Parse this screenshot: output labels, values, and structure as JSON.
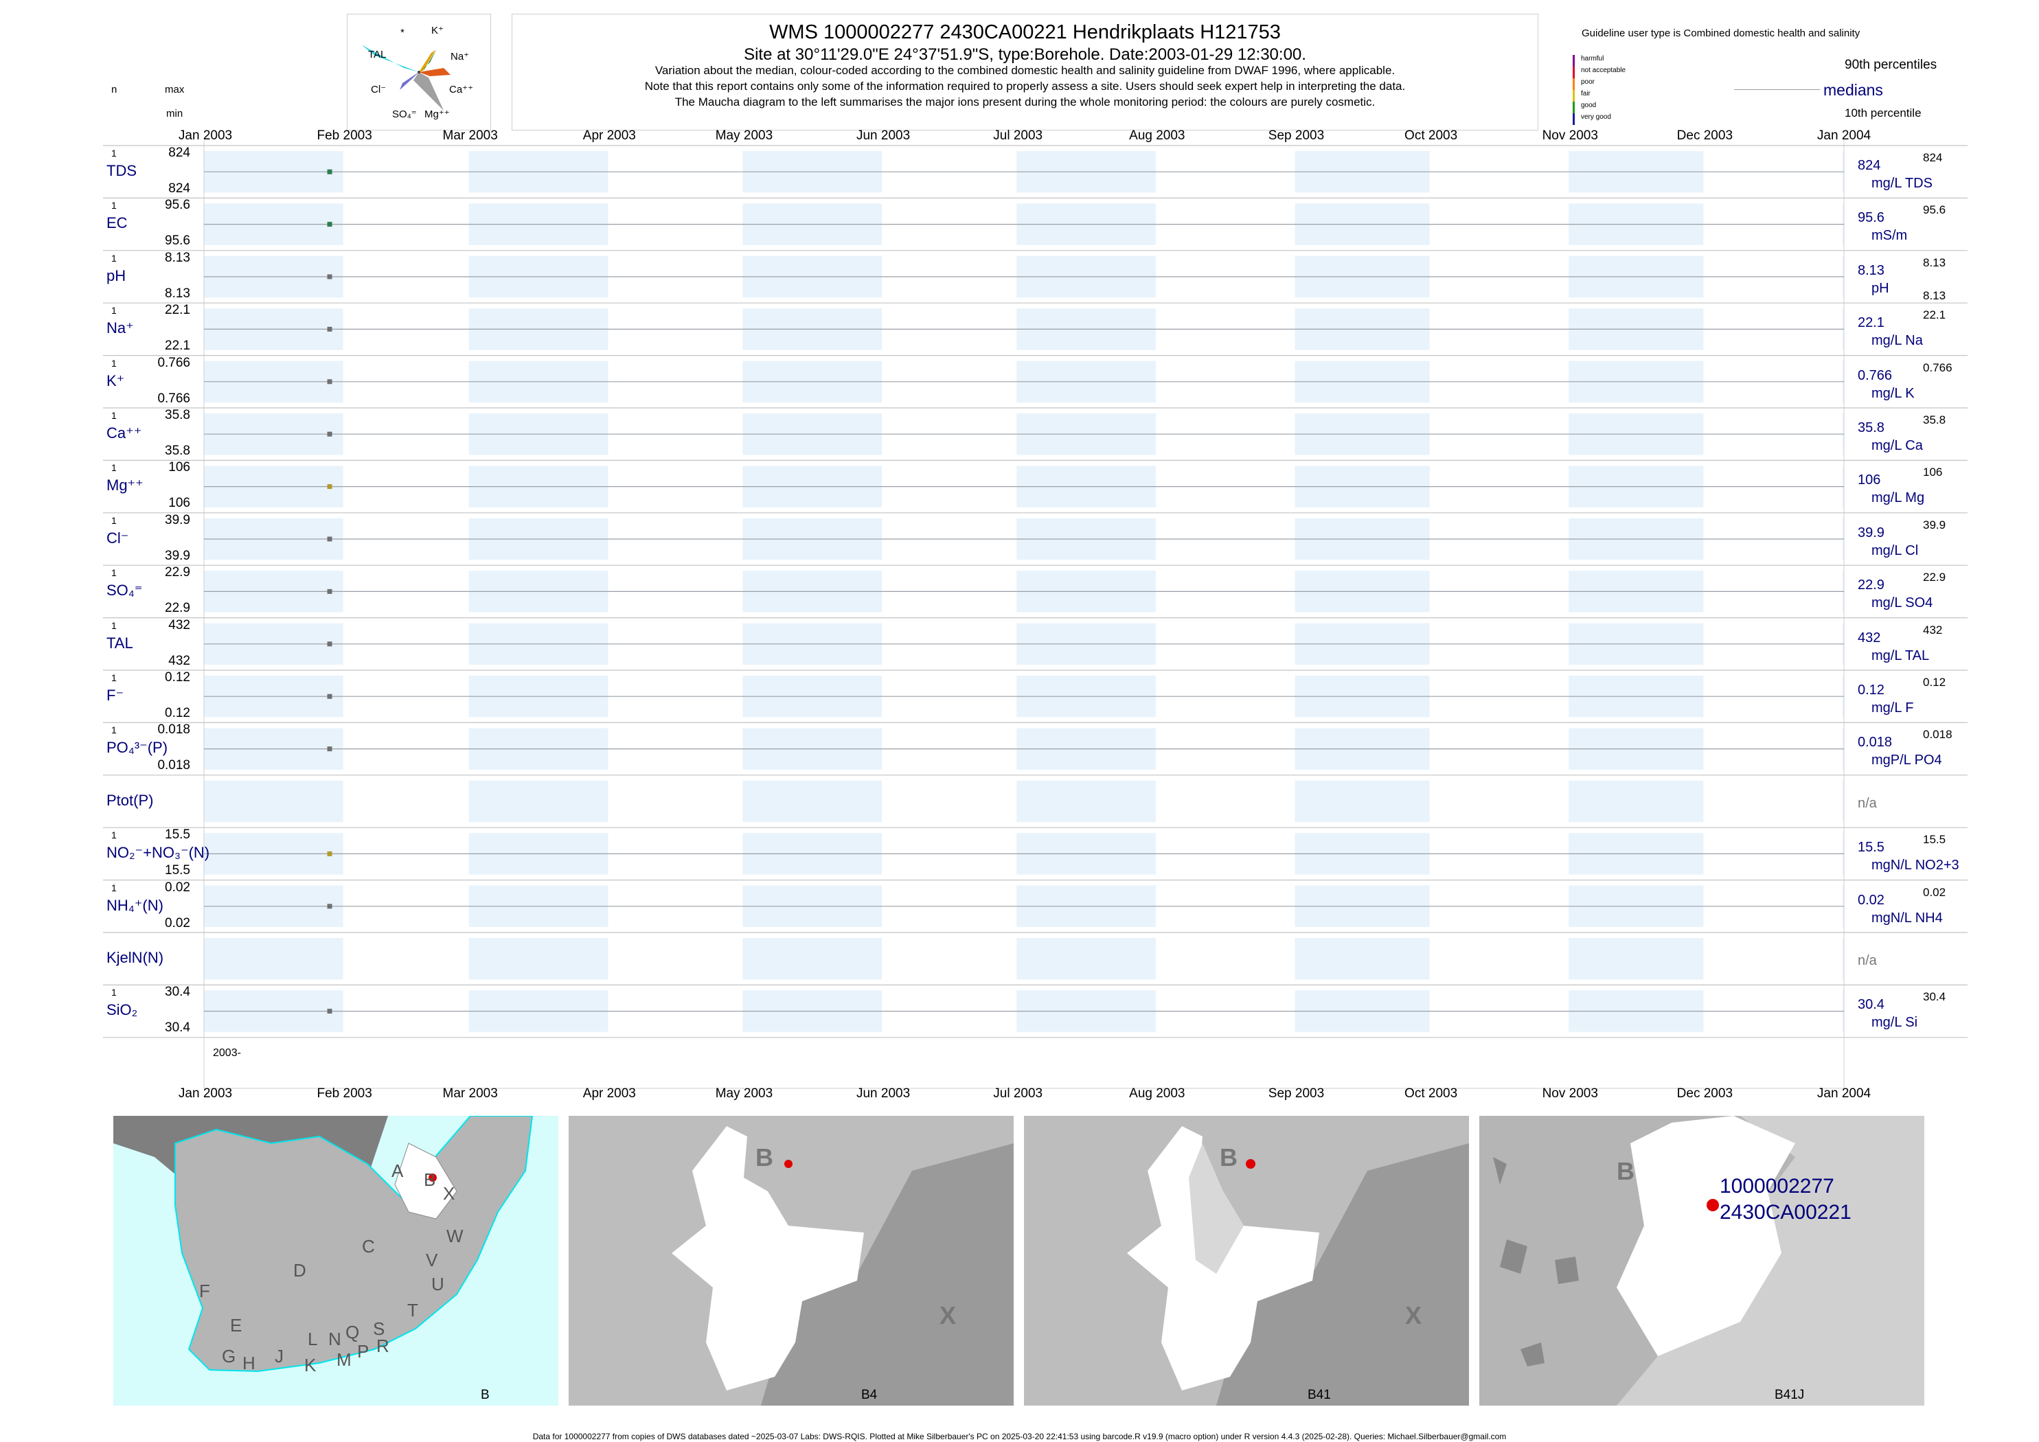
{
  "header": {
    "title": "WMS 1000002277 2430CA00221 Hendrikplaats H121753",
    "subtitle": "Site at 30°11'29.0\"E 24°37'51.9\"S, type:Borehole. Date:2003-01-29 12:30:00.",
    "note1": "Variation about the median,  colour-coded according to the combined domestic health and salinity guideline from DWAF 1996, where applicable.",
    "note2": "Note that this report contains only some of the information required to properly assess a site. Users should seek expert help in interpreting the data.",
    "note3": "The Maucha diagram to the left summarises the major ions present during the whole monitoring period: the colours are purely cosmetic."
  },
  "maucha": {
    "labels": [
      "*",
      "K⁺",
      "TAL",
      "Na⁺",
      "Cl⁻",
      "Ca⁺⁺",
      "SO₄⁼",
      "Mg⁺⁺"
    ]
  },
  "guideline": {
    "title": "Guideline user type is Combined domestic health and salinity",
    "classes": [
      {
        "label": "harmful",
        "color": "#8b008b"
      },
      {
        "label": "not acceptable",
        "color": "#e0002a"
      },
      {
        "label": "poor",
        "color": "#ff7f00"
      },
      {
        "label": "fair",
        "color": "#e0c000"
      },
      {
        "label": "good",
        "color": "#1a9a1a"
      },
      {
        "label": "very good",
        "color": "#1a1aa0"
      }
    ],
    "p90_label": "90th percentiles",
    "median_label": "medians",
    "p10_label": "10th percentile"
  },
  "left_header": {
    "n": "n",
    "max": "max",
    "min": "min"
  },
  "months": [
    "Jan 2003",
    "Feb 2003",
    "Mar 2003",
    "Apr 2003",
    "May 2003",
    "Jun 2003",
    "Jul 2003",
    "Aug 2003",
    "Sep 2003",
    "Oct 2003",
    "Nov 2003",
    "Dec 2003",
    "Jan 2004"
  ],
  "year_label": "2003-",
  "chart_data": {
    "type": "scatter",
    "x_range": [
      "2003-01-01",
      "2004-01-01"
    ],
    "sample_date": "2003-01-29",
    "series": [
      {
        "label": "TDS",
        "n": "1",
        "max": "824",
        "min": "824",
        "median": "824",
        "p90": "824",
        "unit": "mg/L TDS",
        "color": "#2e7d4f"
      },
      {
        "label": "EC",
        "n": "1",
        "max": "95.6",
        "min": "95.6",
        "median": "95.6",
        "p90": "95.6",
        "unit": "mS/m",
        "color": "#2e7d4f"
      },
      {
        "label": "pH",
        "n": "1",
        "max": "8.13",
        "min": "8.13",
        "median": "8.13",
        "p90": "8.13",
        "p10": "8.13",
        "unit": "pH",
        "color": "#707070"
      },
      {
        "label": "Na⁺",
        "n": "1",
        "max": "22.1",
        "min": "22.1",
        "median": "22.1",
        "p90": "22.1",
        "unit": "mg/L Na",
        "color": "#707070"
      },
      {
        "label": "K⁺",
        "n": "1",
        "max": "0.766",
        "min": "0.766",
        "median": "0.766",
        "p90": "0.766",
        "unit": "mg/L K",
        "color": "#707070"
      },
      {
        "label": "Ca⁺⁺",
        "n": "1",
        "max": "35.8",
        "min": "35.8",
        "median": "35.8",
        "p90": "35.8",
        "unit": "mg/L Ca",
        "color": "#707070"
      },
      {
        "label": "Mg⁺⁺",
        "n": "1",
        "max": "106",
        "min": "106",
        "median": "106",
        "p90": "106",
        "unit": "mg/L Mg",
        "color": "#b49a2a"
      },
      {
        "label": "Cl⁻",
        "n": "1",
        "max": "39.9",
        "min": "39.9",
        "median": "39.9",
        "p90": "39.9",
        "unit": "mg/L Cl",
        "color": "#707070"
      },
      {
        "label": "SO₄⁼",
        "n": "1",
        "max": "22.9",
        "min": "22.9",
        "median": "22.9",
        "p90": "22.9",
        "unit": "mg/L SO4",
        "color": "#707070"
      },
      {
        "label": "TAL",
        "n": "1",
        "max": "432",
        "min": "432",
        "median": "432",
        "p90": "432",
        "unit": "mg/L TAL",
        "color": "#707070"
      },
      {
        "label": "F⁻",
        "n": "1",
        "max": "0.12",
        "min": "0.12",
        "median": "0.12",
        "p90": "0.12",
        "unit": "mg/L F",
        "color": "#707070"
      },
      {
        "label": "PO₄³⁻(P)",
        "n": "1",
        "max": "0.018",
        "min": "0.018",
        "median": "0.018",
        "p90": "0.018",
        "unit": "mgP/L PO4",
        "color": "#707070"
      },
      {
        "label": "Ptot(P)",
        "na": "n/a"
      },
      {
        "label": "NO₂⁻+NO₃⁻(N)",
        "n": "1",
        "max": "15.5",
        "min": "15.5",
        "median": "15.5",
        "p90": "15.5",
        "unit": "mgN/L NO2+3",
        "color": "#b49a2a"
      },
      {
        "label": "NH₄⁺(N)",
        "n": "1",
        "max": "0.02",
        "min": "0.02",
        "median": "0.02",
        "p90": "0.02",
        "unit": "mgN/L NH4",
        "color": "#707070"
      },
      {
        "label": "KjelN(N)",
        "na": "n/a"
      },
      {
        "label": "SiO₂",
        "n": "1",
        "max": "30.4",
        "min": "30.4",
        "median": "30.4",
        "p90": "30.4",
        "unit": "mg/L Si",
        "color": "#707070"
      }
    ]
  },
  "maps": [
    {
      "caption": "B",
      "letters": [
        "A",
        "B",
        "X",
        "W",
        "C",
        "V",
        "U",
        "D",
        "T",
        "F",
        "E",
        "S",
        "L",
        "N",
        "Q",
        "R",
        "P",
        "J",
        "M",
        "G",
        "H",
        "K"
      ]
    },
    {
      "caption": "B4",
      "letters": [
        "B",
        "X"
      ]
    },
    {
      "caption": "B41",
      "letters": [
        "B",
        "X"
      ]
    },
    {
      "caption": "B41J",
      "letters": [
        "B"
      ],
      "site_line1": "1000002277",
      "site_line2": "2430CA00221"
    }
  ],
  "footer": "Data for 1000002277 from copies of DWS databases dated ~2025-03-07 Labs: DWS-RQIS. Plotted at Mike Silberbauer's PC on 2025-03-20 22:41:53 using barcode.R v19.9 (macro option) under R version 4.4.3 (2025-02-28). Queries: Michael.Silberbauer@gmail.com"
}
